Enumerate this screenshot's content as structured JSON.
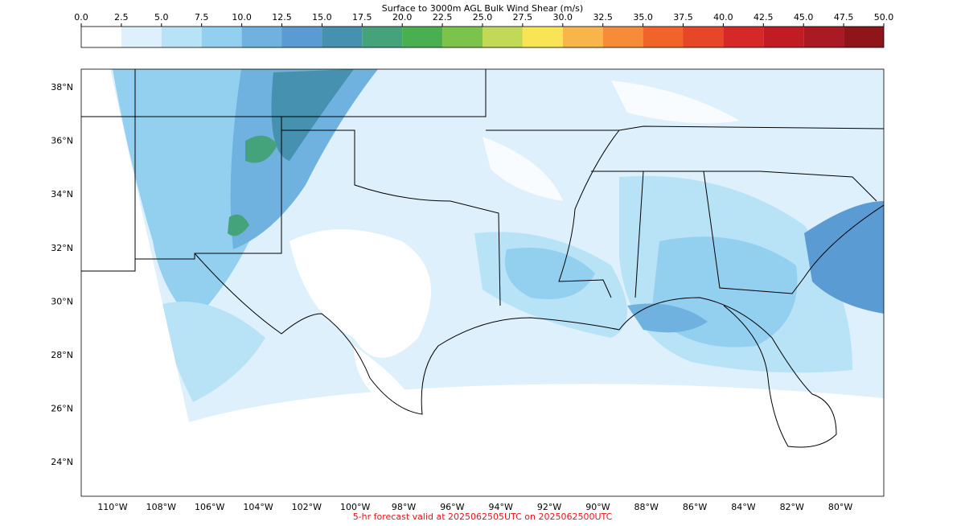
{
  "colorbar": {
    "title": "Surface to 3000m AGL Bulk Wind Shear (m/s)",
    "ticks": [
      {
        "value": 0,
        "label": "0.0"
      },
      {
        "value": 2.5,
        "label": "2.5"
      },
      {
        "value": 5,
        "label": "5.0"
      },
      {
        "value": 7.5,
        "label": "7.5"
      },
      {
        "value": 10,
        "label": "10.0"
      },
      {
        "value": 12.5,
        "label": "12.5"
      },
      {
        "value": 15,
        "label": "15.0"
      },
      {
        "value": 17.5,
        "label": "17.5"
      },
      {
        "value": 20,
        "label": "20.0"
      },
      {
        "value": 22.5,
        "label": "22.5"
      },
      {
        "value": 25,
        "label": "25.0"
      },
      {
        "value": 27.5,
        "label": "27.5"
      },
      {
        "value": 30,
        "label": "30.0"
      },
      {
        "value": 32.5,
        "label": "32.5"
      },
      {
        "value": 35,
        "label": "35.0"
      },
      {
        "value": 37.5,
        "label": "37.5"
      },
      {
        "value": 40,
        "label": "40.0"
      },
      {
        "value": 42.5,
        "label": "42.5"
      },
      {
        "value": 45,
        "label": "45.0"
      },
      {
        "value": 47.5,
        "label": "47.5"
      },
      {
        "value": 50,
        "label": "50.0"
      }
    ],
    "colors": [
      "#ffffff",
      "#ddf0fb",
      "#b8e2f6",
      "#93cfee",
      "#6fb2df",
      "#5b9bd4",
      "#4690b0",
      "#44a37b",
      "#48b04e",
      "#7bc34a",
      "#c1d956",
      "#f9e456",
      "#f8b54a",
      "#f68c38",
      "#f16329",
      "#e64729",
      "#d72828",
      "#c11c24",
      "#aa1a22",
      "#8f1519"
    ]
  },
  "map": {
    "lat_labels": [
      {
        "value": 38,
        "label": "38°N"
      },
      {
        "value": 36,
        "label": "36°N"
      },
      {
        "value": 34,
        "label": "34°N"
      },
      {
        "value": 32,
        "label": "32°N"
      },
      {
        "value": 30,
        "label": "30°N"
      },
      {
        "value": 28,
        "label": "28°N"
      },
      {
        "value": 26,
        "label": "26°N"
      },
      {
        "value": 24,
        "label": "24°N"
      }
    ],
    "lon_labels": [
      {
        "value": -110,
        "label": "110°W"
      },
      {
        "value": -108,
        "label": "108°W"
      },
      {
        "value": -106,
        "label": "106°W"
      },
      {
        "value": -104,
        "label": "104°W"
      },
      {
        "value": -102,
        "label": "102°W"
      },
      {
        "value": -100,
        "label": "100°W"
      },
      {
        "value": -98,
        "label": "98°W"
      },
      {
        "value": -96,
        "label": "96°W"
      },
      {
        "value": -94,
        "label": "94°W"
      },
      {
        "value": -92,
        "label": "92°W"
      },
      {
        "value": -90,
        "label": "90°W"
      },
      {
        "value": -88,
        "label": "88°W"
      },
      {
        "value": -86,
        "label": "86°W"
      },
      {
        "value": -84,
        "label": "84°W"
      },
      {
        "value": -82,
        "label": "82°W"
      },
      {
        "value": -80,
        "label": "80°W"
      }
    ]
  },
  "footer": "5-hr forecast valid at 2025062505UTC on 2025062500UTC"
}
